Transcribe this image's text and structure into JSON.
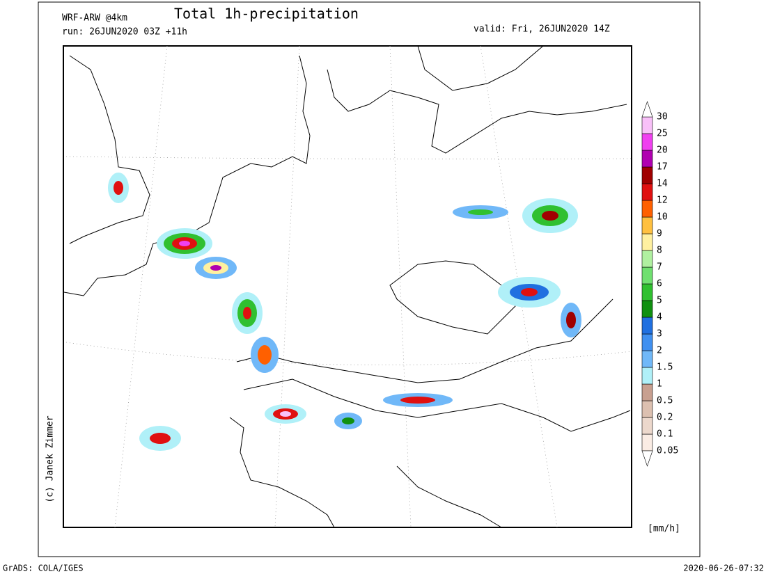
{
  "header": {
    "model": "WRF-ARW @4km",
    "title": "Total 1h-precipitation",
    "run": "run: 26JUN2020 03Z +11h",
    "valid": "valid: Fri, 26JUN2020 14Z"
  },
  "copyright": "(c) Janek Zimmer",
  "legend": {
    "unit": "[mm/h]",
    "levels": [
      "0.05",
      "0.1",
      "0.2",
      "0.5",
      "1",
      "1.5",
      "2",
      "3",
      "4",
      "5",
      "6",
      "7",
      "8",
      "9",
      "10",
      "12",
      "14",
      "17",
      "20",
      "25",
      "30"
    ],
    "colors": [
      "#faece4",
      "#ecd8cc",
      "#dcc0b0",
      "#c8a090",
      "#b0f0f8",
      "#70b8f8",
      "#4090f0",
      "#2070e0",
      "#109010",
      "#30c030",
      "#70e070",
      "#b0f0a0",
      "#fff0a0",
      "#ffc040",
      "#ff6000",
      "#e01010",
      "#a00000",
      "#b000b0",
      "#f040f0",
      "#f8c0f8"
    ]
  },
  "footer": {
    "left": "GrADS: COLA/IGES",
    "right": "2020-06-26-07:32"
  }
}
